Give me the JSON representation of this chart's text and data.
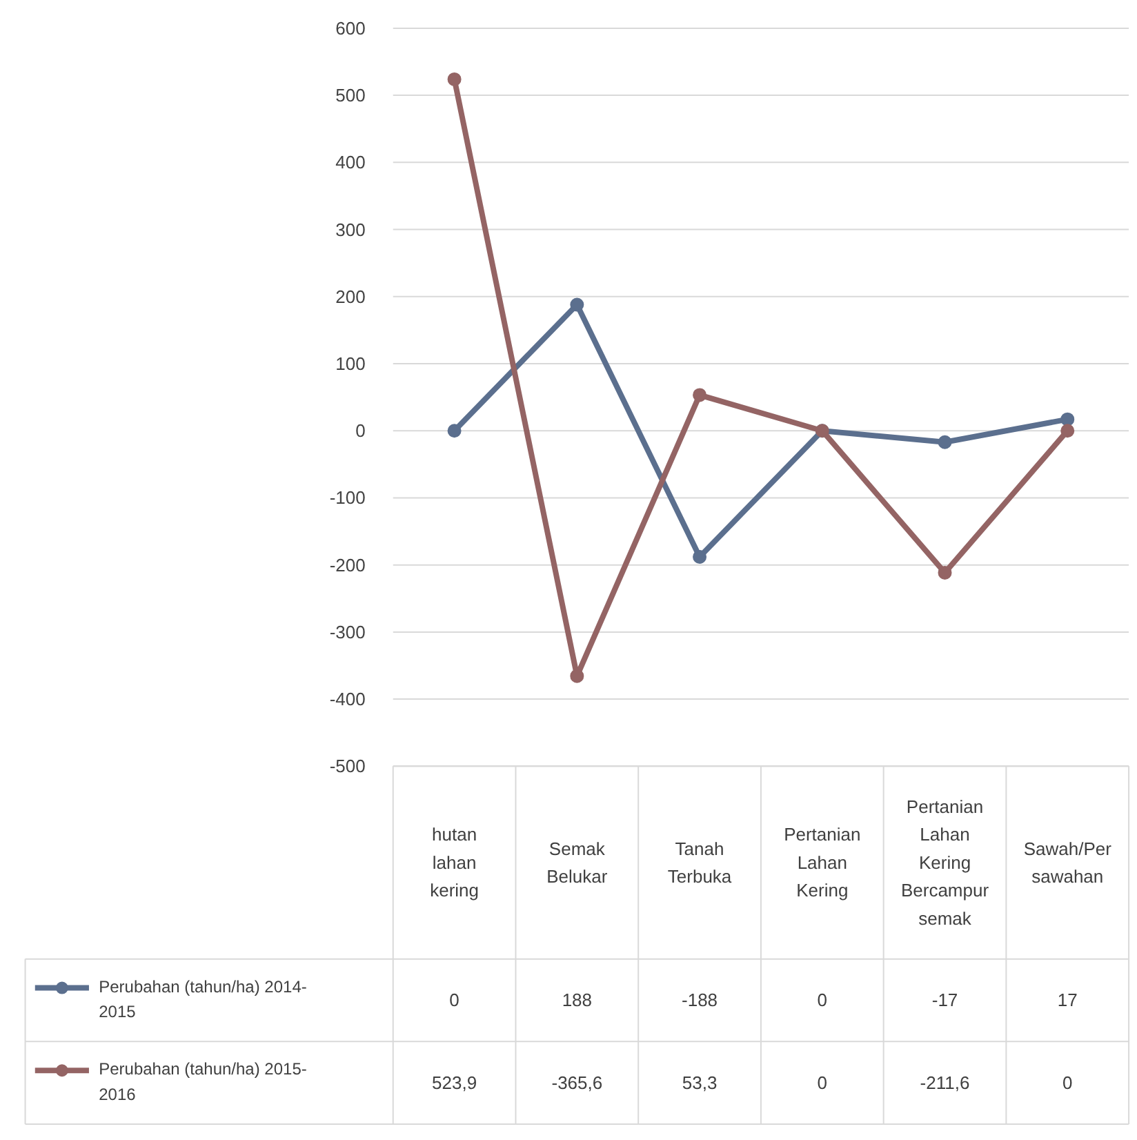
{
  "chart_data": {
    "type": "line",
    "categories": [
      "hutan lahan kering",
      "Semak Belukar",
      "Tanah Terbuka",
      "Pertanian Lahan Kering",
      "Pertanian Lahan Kering Bercampur semak",
      "Sawah/Persawahan"
    ],
    "series": [
      {
        "name": "Perubahan (tahun/ha) 2014-2015",
        "color": "#5b6f8e",
        "values": [
          0,
          188,
          -188,
          0,
          -17,
          17
        ],
        "value_labels": [
          "0",
          "188",
          "-188",
          "0",
          "-17",
          "17"
        ]
      },
      {
        "name": "Perubahan (tahun/ha) 2015-2016",
        "color": "#946464",
        "values": [
          523.9,
          -365.6,
          53.3,
          0,
          -211.6,
          0
        ],
        "value_labels": [
          "523,9",
          "-365,6",
          "53,3",
          "0",
          "-211,6",
          "0"
        ]
      }
    ],
    "ylim": [
      -500,
      600
    ],
    "yticks": [
      -500,
      -400,
      -300,
      -200,
      -100,
      0,
      100,
      200,
      300,
      400,
      500,
      600
    ],
    "grid": "y",
    "marker": "circle",
    "line_style": "solid",
    "legend": "bottom left"
  }
}
